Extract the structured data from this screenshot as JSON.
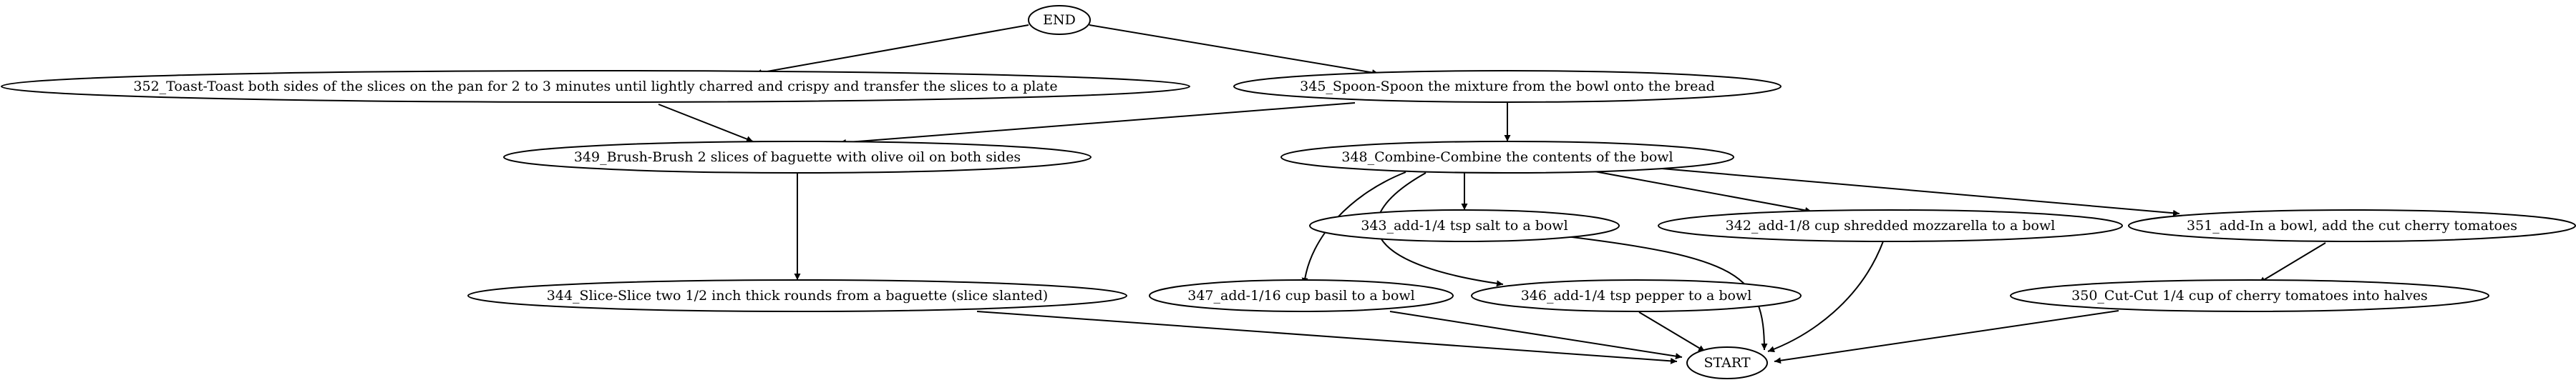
{
  "graph": {
    "nodes": {
      "end": "END",
      "n352": "352_Toast-Toast both sides of the slices on the pan for 2 to 3 minutes until lightly charred and crispy and transfer the slices to a plate",
      "n345": "345_Spoon-Spoon the mixture from the bowl onto the bread",
      "n349": "349_Brush-Brush 2 slices of baguette with olive oil on both sides",
      "n348": "348_Combine-Combine the contents of the bowl",
      "n343": "343_add-1/4 tsp salt to a bowl",
      "n342": "342_add-1/8 cup shredded mozzarella to a bowl",
      "n351": "351_add-In a bowl, add the cut cherry tomatoes",
      "n344": "344_Slice-Slice two 1/2 inch thick rounds from a baguette (slice slanted)",
      "n347": "347_add-1/16 cup basil to a bowl",
      "n346": "346_add-1/4 tsp pepper to a bowl",
      "n350": "350_Cut-Cut 1/4 cup of cherry tomatoes into halves",
      "start": "START"
    },
    "edges": [
      [
        "end",
        "n352"
      ],
      [
        "end",
        "n345"
      ],
      [
        "n352",
        "n349"
      ],
      [
        "n345",
        "n349"
      ],
      [
        "n345",
        "n348"
      ],
      [
        "n349",
        "n344"
      ],
      [
        "n348",
        "n343"
      ],
      [
        "n348",
        "n342"
      ],
      [
        "n348",
        "n351"
      ],
      [
        "n348",
        "n347"
      ],
      [
        "n348",
        "n346"
      ],
      [
        "n351",
        "n350"
      ],
      [
        "n344",
        "start"
      ],
      [
        "n347",
        "start"
      ],
      [
        "n346",
        "start"
      ],
      [
        "n343",
        "start"
      ],
      [
        "n342",
        "start"
      ],
      [
        "n350",
        "start"
      ]
    ]
  }
}
